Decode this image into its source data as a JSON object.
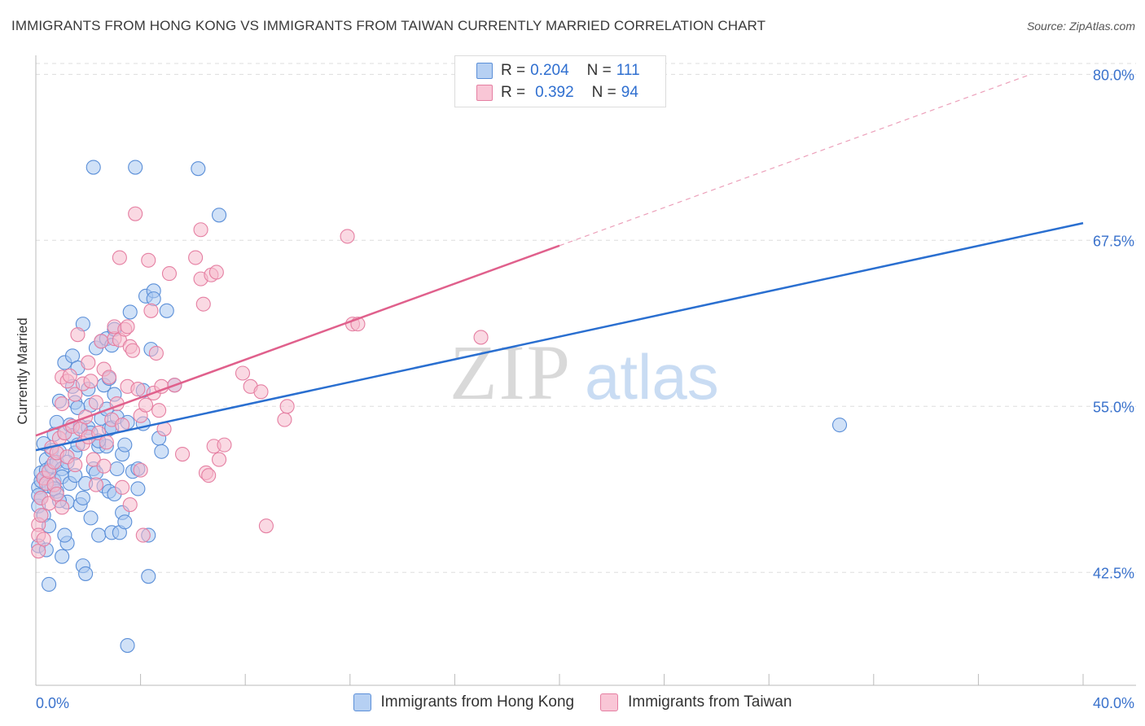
{
  "title": "IMMIGRANTS FROM HONG KONG VS IMMIGRANTS FROM TAIWAN CURRENTLY MARRIED CORRELATION CHART",
  "source": "Source: ZipAtlas.com",
  "watermark": {
    "zip": "ZIP",
    "atlas": "atlas"
  },
  "legend": {
    "rows": [
      {
        "r_label": "R =",
        "r_value": "0.204",
        "n_label": "N =",
        "n_value": "111"
      },
      {
        "r_label": "R =",
        "r_value": "0.392",
        "n_label": "N =",
        "n_value": "94"
      }
    ]
  },
  "colors": {
    "blue_fill": "#a9c8f0",
    "blue_stroke": "#5b8fd8",
    "blue_line": "#2a6fd0",
    "pink_fill": "#f6b9cc",
    "pink_stroke": "#e57fa2",
    "pink_line": "#e0608c",
    "axis_text": "#3a72cc",
    "grid": "#dddddd"
  },
  "chart_data": {
    "type": "scatter",
    "title": "IMMIGRANTS FROM HONG KONG VS IMMIGRANTS FROM TAIWAN CURRENTLY MARRIED CORRELATION CHART",
    "xlabel": "",
    "ylabel": "Currently Married",
    "xlim": [
      0,
      40
    ],
    "ylim": [
      34.0,
      81.0
    ],
    "x_ticks": [
      "0.0%",
      "40.0%"
    ],
    "y_ticks": [
      {
        "value": 42.5,
        "label": "42.5%"
      },
      {
        "value": 55.0,
        "label": "55.0%"
      },
      {
        "value": 67.5,
        "label": "67.5%"
      },
      {
        "value": 80.0,
        "label": "80.0%"
      }
    ],
    "grid": true,
    "legend_position": "top-center",
    "series": [
      {
        "name": "Immigrants from Hong Kong",
        "r": 0.204,
        "n": 111,
        "trend": {
          "x": [
            0,
            40
          ],
          "y": [
            51.7,
            68.8
          ],
          "style": "solid"
        },
        "points": [
          [
            0.1,
            48.9
          ],
          [
            0.1,
            48.3
          ],
          [
            0.1,
            47.5
          ],
          [
            0.1,
            44.5
          ],
          [
            0.2,
            49.4
          ],
          [
            0.2,
            48.1
          ],
          [
            0.2,
            50.0
          ],
          [
            0.3,
            46.8
          ],
          [
            0.3,
            49.6
          ],
          [
            0.4,
            51.0
          ],
          [
            0.4,
            50.2
          ],
          [
            0.5,
            49.0
          ],
          [
            0.5,
            41.6
          ],
          [
            0.6,
            50.5
          ],
          [
            0.6,
            51.7
          ],
          [
            0.7,
            49.4
          ],
          [
            0.7,
            52.9
          ],
          [
            0.8,
            48.6
          ],
          [
            0.8,
            53.8
          ],
          [
            0.8,
            50.8
          ],
          [
            0.9,
            55.4
          ],
          [
            0.9,
            51.6
          ],
          [
            1.0,
            50.3
          ],
          [
            1.0,
            49.7
          ],
          [
            1.0,
            43.7
          ],
          [
            1.1,
            53.0
          ],
          [
            1.1,
            58.3
          ],
          [
            1.2,
            47.8
          ],
          [
            1.2,
            44.7
          ],
          [
            1.3,
            49.2
          ],
          [
            1.3,
            53.6
          ],
          [
            1.4,
            52.8
          ],
          [
            1.4,
            56.5
          ],
          [
            1.4,
            58.8
          ],
          [
            1.5,
            51.5
          ],
          [
            1.5,
            55.3
          ],
          [
            1.5,
            49.8
          ],
          [
            1.6,
            52.1
          ],
          [
            1.6,
            57.9
          ],
          [
            1.7,
            53.5
          ],
          [
            1.7,
            47.6
          ],
          [
            1.8,
            48.1
          ],
          [
            1.8,
            43.0
          ],
          [
            1.8,
            61.2
          ],
          [
            1.9,
            42.4
          ],
          [
            2.0,
            56.3
          ],
          [
            2.0,
            53.4
          ],
          [
            2.1,
            55.1
          ],
          [
            2.1,
            53.0
          ],
          [
            2.2,
            73.0
          ],
          [
            2.2,
            50.3
          ],
          [
            2.3,
            59.4
          ],
          [
            2.3,
            50.0
          ],
          [
            2.4,
            45.3
          ],
          [
            2.4,
            52.0
          ],
          [
            2.5,
            59.9
          ],
          [
            2.5,
            54.1
          ],
          [
            2.6,
            56.6
          ],
          [
            2.6,
            49.0
          ],
          [
            2.7,
            52.0
          ],
          [
            2.7,
            54.8
          ],
          [
            2.7,
            60.1
          ],
          [
            2.8,
            48.6
          ],
          [
            2.8,
            53.3
          ],
          [
            2.9,
            59.6
          ],
          [
            2.9,
            45.5
          ],
          [
            2.9,
            53.4
          ],
          [
            3.0,
            48.4
          ],
          [
            3.0,
            55.9
          ],
          [
            3.0,
            60.8
          ],
          [
            3.1,
            50.3
          ],
          [
            3.1,
            54.2
          ],
          [
            3.2,
            45.5
          ],
          [
            3.3,
            47.0
          ],
          [
            3.3,
            51.4
          ],
          [
            3.4,
            52.1
          ],
          [
            3.4,
            46.3
          ],
          [
            3.5,
            37.0
          ],
          [
            3.6,
            62.1
          ],
          [
            3.7,
            50.1
          ],
          [
            3.8,
            73.0
          ],
          [
            3.9,
            48.8
          ],
          [
            3.9,
            50.3
          ],
          [
            4.1,
            56.2
          ],
          [
            4.1,
            53.7
          ],
          [
            4.2,
            63.3
          ],
          [
            4.3,
            45.3
          ],
          [
            4.3,
            42.2
          ],
          [
            4.4,
            59.3
          ],
          [
            4.5,
            63.7
          ],
          [
            4.5,
            63.1
          ],
          [
            4.7,
            52.6
          ],
          [
            4.8,
            51.6
          ],
          [
            5.0,
            62.2
          ],
          [
            5.3,
            56.6
          ],
          [
            6.2,
            72.9
          ],
          [
            7.0,
            69.4
          ],
          [
            0.5,
            46.0
          ],
          [
            0.7,
            48.8
          ],
          [
            1.2,
            50.8
          ],
          [
            1.9,
            49.2
          ],
          [
            2.4,
            52.4
          ],
          [
            0.4,
            44.2
          ],
          [
            0.9,
            47.9
          ],
          [
            1.6,
            54.9
          ],
          [
            2.1,
            46.6
          ],
          [
            3.5,
            53.8
          ],
          [
            1.1,
            45.3
          ],
          [
            0.3,
            52.2
          ],
          [
            30.7,
            53.6
          ],
          [
            2.8,
            57.1
          ]
        ]
      },
      {
        "name": "Immigrants from Taiwan",
        "r": 0.392,
        "n": 94,
        "trend": {
          "x": [
            0,
            20
          ],
          "y": [
            52.8,
            67.1
          ],
          "x_dashed_end": 38,
          "y_dashed_end": 80.0,
          "style": "solid-then-dashed"
        },
        "points": [
          [
            0.1,
            46.1
          ],
          [
            0.1,
            45.3
          ],
          [
            0.1,
            44.1
          ],
          [
            0.2,
            46.8
          ],
          [
            0.2,
            48.1
          ],
          [
            0.3,
            49.6
          ],
          [
            0.4,
            49.2
          ],
          [
            0.5,
            47.7
          ],
          [
            0.5,
            50.1
          ],
          [
            0.6,
            51.9
          ],
          [
            0.7,
            50.8
          ],
          [
            0.7,
            49.1
          ],
          [
            0.8,
            48.4
          ],
          [
            0.8,
            51.5
          ],
          [
            0.9,
            52.6
          ],
          [
            1.0,
            57.2
          ],
          [
            1.0,
            55.2
          ],
          [
            1.1,
            53.0
          ],
          [
            1.2,
            56.9
          ],
          [
            1.2,
            51.2
          ],
          [
            1.3,
            57.3
          ],
          [
            1.4,
            53.5
          ],
          [
            1.5,
            55.9
          ],
          [
            1.5,
            50.6
          ],
          [
            1.6,
            60.4
          ],
          [
            1.7,
            53.3
          ],
          [
            1.8,
            56.7
          ],
          [
            1.8,
            52.2
          ],
          [
            1.9,
            54.2
          ],
          [
            2.0,
            58.3
          ],
          [
            2.0,
            52.7
          ],
          [
            2.1,
            56.9
          ],
          [
            2.2,
            51.0
          ],
          [
            2.3,
            55.3
          ],
          [
            2.4,
            53.0
          ],
          [
            2.5,
            59.9
          ],
          [
            2.6,
            57.8
          ],
          [
            2.6,
            50.5
          ],
          [
            2.7,
            52.3
          ],
          [
            2.8,
            57.2
          ],
          [
            2.9,
            54.0
          ],
          [
            3.0,
            60.1
          ],
          [
            3.0,
            61.0
          ],
          [
            3.1,
            55.2
          ],
          [
            3.2,
            60.0
          ],
          [
            3.2,
            66.2
          ],
          [
            3.3,
            53.6
          ],
          [
            3.3,
            48.9
          ],
          [
            3.4,
            60.8
          ],
          [
            3.5,
            61.0
          ],
          [
            3.5,
            56.5
          ],
          [
            3.6,
            59.5
          ],
          [
            3.7,
            59.2
          ],
          [
            3.8,
            69.5
          ],
          [
            3.9,
            56.3
          ],
          [
            4.0,
            54.3
          ],
          [
            4.0,
            50.2
          ],
          [
            4.1,
            45.3
          ],
          [
            4.2,
            55.1
          ],
          [
            4.3,
            66.0
          ],
          [
            4.4,
            62.2
          ],
          [
            4.5,
            56.0
          ],
          [
            4.6,
            59.0
          ],
          [
            4.7,
            54.7
          ],
          [
            4.8,
            56.5
          ],
          [
            4.9,
            53.3
          ],
          [
            5.1,
            65.0
          ],
          [
            5.3,
            56.6
          ],
          [
            5.6,
            51.4
          ],
          [
            6.1,
            66.2
          ],
          [
            6.3,
            64.6
          ],
          [
            6.3,
            68.3
          ],
          [
            6.4,
            62.7
          ],
          [
            6.5,
            50.0
          ],
          [
            6.6,
            49.8
          ],
          [
            6.7,
            64.9
          ],
          [
            6.8,
            52.0
          ],
          [
            6.9,
            65.1
          ],
          [
            7.0,
            51.0
          ],
          [
            7.2,
            52.1
          ],
          [
            7.9,
            57.5
          ],
          [
            8.2,
            56.5
          ],
          [
            8.6,
            56.1
          ],
          [
            8.8,
            46.0
          ],
          [
            9.5,
            54.0
          ],
          [
            9.6,
            55.0
          ],
          [
            11.9,
            67.8
          ],
          [
            12.1,
            61.2
          ],
          [
            12.3,
            61.2
          ],
          [
            17.0,
            60.2
          ],
          [
            0.3,
            45.0
          ],
          [
            1.0,
            47.4
          ],
          [
            2.3,
            49.1
          ],
          [
            3.6,
            47.6
          ]
        ]
      }
    ]
  }
}
